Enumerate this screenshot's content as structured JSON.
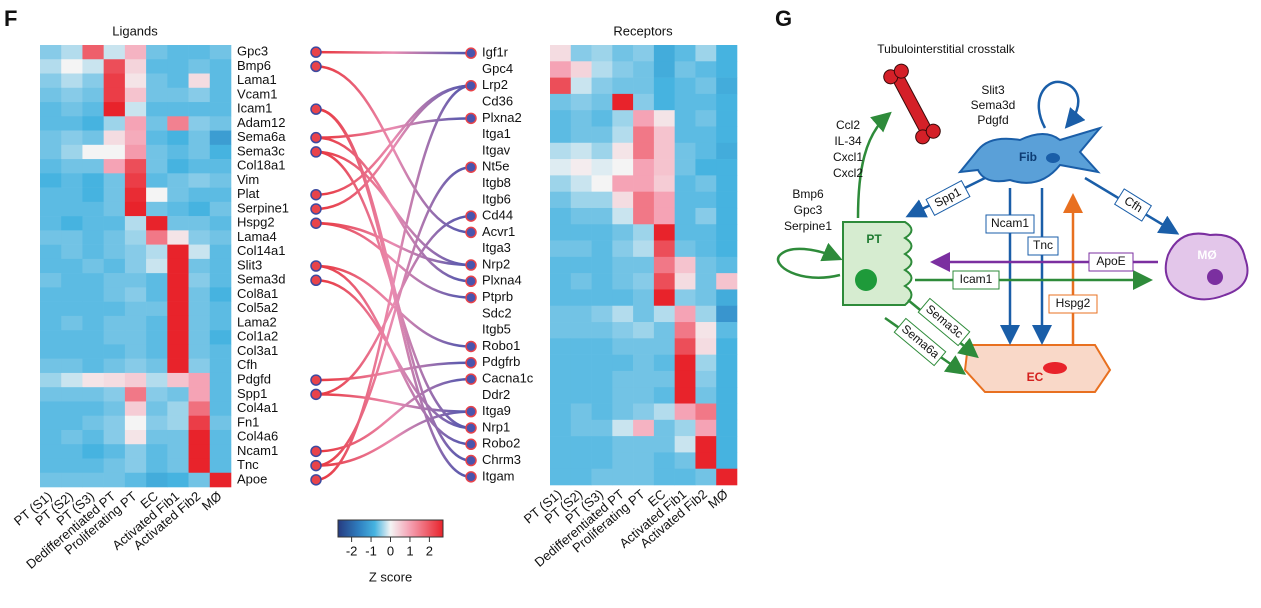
{
  "panel_f": {
    "label": "F",
    "cell_types": [
      "PT (S1)",
      "PT (S2)",
      "PT (S3)",
      "Dedifferentiated PT",
      "Proliferating PT",
      "EC",
      "Activated Fib1",
      "Activated Fib2",
      "MØ"
    ],
    "ligands": {
      "title": "Ligands",
      "genes": [
        "Gpc3",
        "Bmp6",
        "Lama1",
        "Vcam1",
        "Icam1",
        "Adam12",
        "Sema6a",
        "Sema3c",
        "Col18a1",
        "Vim",
        "Plat",
        "Serpine1",
        "Hspg2",
        "Lama4",
        "Col14a1",
        "Slit3",
        "Sema3d",
        "Col8a1",
        "Col5a2",
        "Lama2",
        "Col1a2",
        "Col3a1",
        "Cfh",
        "Pdgfd",
        "Spp1",
        "Col4a1",
        "Fn1",
        "Col4a6",
        "Ncam1",
        "Tnc",
        "Apoe"
      ],
      "values": [
        [
          -0.5,
          -0.3,
          1.8,
          -0.2,
          0.8,
          -0.6,
          -0.7,
          -0.7,
          -0.6
        ],
        [
          -0.3,
          0,
          -0.2,
          2,
          0.4,
          -0.7,
          -0.7,
          -0.6,
          -0.7
        ],
        [
          -0.5,
          -0.3,
          -0.5,
          2.2,
          0.2,
          -0.6,
          -0.7,
          0.3,
          -0.7
        ],
        [
          -0.6,
          -0.5,
          -0.6,
          2.2,
          0.6,
          -0.6,
          -0.6,
          -0.5,
          -0.7
        ],
        [
          -0.7,
          -0.6,
          -0.7,
          2.5,
          -0.2,
          -0.7,
          -0.7,
          -0.7,
          -0.7
        ],
        [
          -0.7,
          -0.7,
          -0.8,
          -0.4,
          1,
          -0.6,
          1.4,
          -0.5,
          -0.6
        ],
        [
          -0.6,
          -0.5,
          -0.6,
          0.3,
          0.9,
          -0.7,
          -0.8,
          -0.6,
          -1.1
        ],
        [
          -0.6,
          -0.4,
          0,
          0,
          1.1,
          -0.6,
          -0.7,
          -0.6,
          -0.8
        ],
        [
          -0.7,
          -0.6,
          -0.6,
          1,
          2,
          -0.6,
          -0.8,
          -0.7,
          -0.7
        ],
        [
          -0.8,
          -0.7,
          -0.8,
          -0.6,
          2.2,
          -0.7,
          -0.6,
          -0.5,
          -0.6
        ],
        [
          -0.7,
          -0.7,
          -0.8,
          -0.6,
          2.4,
          0,
          -0.6,
          -0.7,
          -0.7
        ],
        [
          -0.7,
          -0.7,
          -0.7,
          -0.6,
          2.5,
          -0.6,
          -0.7,
          -0.8,
          -0.6
        ],
        [
          -0.7,
          -0.8,
          -0.7,
          -0.7,
          -0.3,
          2.5,
          -0.6,
          -0.6,
          -0.7
        ],
        [
          -0.6,
          -0.6,
          -0.7,
          -0.6,
          -0.4,
          1.5,
          0.2,
          -0.5,
          -0.6
        ],
        [
          -0.7,
          -0.6,
          -0.7,
          -0.6,
          -0.5,
          -0.3,
          2.6,
          -0.2,
          -0.7
        ],
        [
          -0.7,
          -0.7,
          -0.6,
          -0.7,
          -0.5,
          -0.2,
          2.6,
          -0.6,
          -0.7
        ],
        [
          -0.6,
          -0.7,
          -0.7,
          -0.6,
          -0.6,
          -0.7,
          2.6,
          -0.5,
          -0.7
        ],
        [
          -0.7,
          -0.7,
          -0.7,
          -0.6,
          -0.5,
          -0.7,
          2.6,
          -0.6,
          -0.8
        ],
        [
          -0.7,
          -0.7,
          -0.7,
          -0.7,
          -0.6,
          -0.6,
          2.6,
          -0.6,
          -0.7
        ],
        [
          -0.7,
          -0.6,
          -0.7,
          -0.6,
          -0.6,
          -0.7,
          2.6,
          -0.6,
          -0.7
        ],
        [
          -0.7,
          -0.7,
          -0.7,
          -0.6,
          -0.6,
          -0.7,
          2.6,
          -0.6,
          -0.8
        ],
        [
          -0.7,
          -0.7,
          -0.7,
          -0.7,
          -0.6,
          -0.7,
          2.6,
          -0.6,
          -0.7
        ],
        [
          -0.6,
          -0.6,
          -0.7,
          -0.6,
          -0.5,
          -0.6,
          2.6,
          -0.5,
          -0.7
        ],
        [
          -0.4,
          -0.2,
          0.2,
          0.3,
          0.5,
          -0.3,
          0.6,
          1,
          -0.7
        ],
        [
          -0.6,
          -0.6,
          -0.6,
          -0.5,
          1.5,
          -0.5,
          -0.6,
          1,
          -0.7
        ],
        [
          -0.7,
          -0.7,
          -0.7,
          -0.6,
          0.5,
          -0.6,
          -0.4,
          1.6,
          -0.7
        ],
        [
          -0.7,
          -0.7,
          -0.6,
          -0.5,
          0,
          -0.5,
          -0.4,
          2.2,
          -0.6
        ],
        [
          -0.7,
          -0.6,
          -0.7,
          -0.5,
          0.2,
          -0.6,
          -0.6,
          2.5,
          -0.7
        ],
        [
          -0.7,
          -0.7,
          -0.8,
          -0.7,
          -0.5,
          -0.7,
          -0.6,
          2.6,
          -0.7
        ],
        [
          -0.7,
          -0.7,
          -0.7,
          -0.6,
          -0.5,
          -0.7,
          -0.6,
          2.6,
          -0.7
        ],
        [
          -0.6,
          -0.6,
          -0.6,
          -0.6,
          -0.7,
          -0.9,
          -0.8,
          -0.6,
          2.6
        ]
      ]
    },
    "receptors": {
      "title": "Receptors",
      "genes": [
        "Igf1r",
        "Gpc4",
        "Lrp2",
        "Cd36",
        "Plxna2",
        "Itga1",
        "Itgav",
        "Nt5e",
        "Itgb8",
        "Itgb6",
        "Cd44",
        "Acvr1",
        "Itga3",
        "Nrp2",
        "Plxna4",
        "Ptprb",
        "Sdc2",
        "Itgb5",
        "Robo1",
        "Pdgfrb",
        "Cacna1c",
        "Ddr2",
        "Itga9",
        "Nrp1",
        "Robo2",
        "Chrm3",
        "Itgam"
      ],
      "values": [
        [
          0.3,
          -0.5,
          -0.4,
          -0.6,
          -0.5,
          -0.9,
          -0.7,
          -0.4,
          -0.8
        ],
        [
          1,
          0.4,
          -0.3,
          -0.5,
          -0.6,
          -0.9,
          -0.6,
          -0.7,
          -0.8
        ],
        [
          2,
          -0.2,
          -0.5,
          -0.6,
          -0.6,
          -0.8,
          -0.7,
          -0.6,
          -0.9
        ],
        [
          -0.6,
          -0.5,
          -0.6,
          2.5,
          -0.5,
          -0.8,
          -0.7,
          -0.7,
          -0.8
        ],
        [
          -0.7,
          -0.6,
          -0.7,
          -0.4,
          1,
          0.2,
          -0.7,
          -0.6,
          -0.8
        ],
        [
          -0.7,
          -0.6,
          -0.6,
          -0.3,
          1.5,
          0.6,
          -0.7,
          -0.7,
          -0.8
        ],
        [
          -0.3,
          -0.2,
          -0.4,
          0.2,
          1.5,
          0.6,
          -0.6,
          -0.7,
          -0.9
        ],
        [
          -0.1,
          0.1,
          -0.1,
          0,
          1,
          0.6,
          -0.6,
          -0.8,
          -0.8
        ],
        [
          -0.4,
          -0.2,
          0,
          1,
          1,
          0.5,
          -0.7,
          -0.6,
          -0.8
        ],
        [
          -0.6,
          -0.4,
          -0.4,
          0.3,
          1.5,
          1,
          -0.7,
          -0.7,
          -0.8
        ],
        [
          -0.7,
          -0.6,
          -0.6,
          -0.2,
          1.5,
          1,
          -0.7,
          -0.5,
          -0.8
        ],
        [
          -0.7,
          -0.7,
          -0.7,
          -0.6,
          -0.4,
          2.5,
          -0.7,
          -0.7,
          -0.8
        ],
        [
          -0.6,
          -0.6,
          -0.7,
          -0.5,
          -0.3,
          2,
          -0.6,
          -0.7,
          -0.8
        ],
        [
          -0.7,
          -0.7,
          -0.7,
          -0.6,
          -0.6,
          1.5,
          0.6,
          -0.6,
          -0.7
        ],
        [
          -0.7,
          -0.6,
          -0.7,
          -0.6,
          -0.5,
          2,
          0.3,
          -0.6,
          0.6
        ],
        [
          -0.7,
          -0.7,
          -0.7,
          -0.7,
          -0.6,
          2.5,
          -0.5,
          -0.6,
          -0.9
        ],
        [
          -0.6,
          -0.6,
          -0.5,
          -0.3,
          -0.6,
          -0.3,
          1,
          -0.4,
          -1.2
        ],
        [
          -0.6,
          -0.6,
          -0.6,
          -0.5,
          -0.4,
          -0.6,
          1.5,
          0.2,
          -0.7
        ],
        [
          -0.7,
          -0.7,
          -0.7,
          -0.6,
          -0.6,
          -0.6,
          2,
          0.3,
          -0.8
        ],
        [
          -0.7,
          -0.7,
          -0.7,
          -0.7,
          -0.6,
          -0.7,
          2.5,
          -0.4,
          -0.8
        ],
        [
          -0.7,
          -0.7,
          -0.7,
          -0.6,
          -0.6,
          -0.6,
          2.5,
          -0.5,
          -0.8
        ],
        [
          -0.7,
          -0.7,
          -0.7,
          -0.6,
          -0.6,
          -0.7,
          2.5,
          -0.6,
          -0.8
        ],
        [
          -0.7,
          -0.6,
          -0.7,
          -0.6,
          -0.5,
          -0.3,
          1,
          1.5,
          -0.8
        ],
        [
          -0.7,
          -0.6,
          -0.6,
          -0.2,
          0.8,
          -0.6,
          -0.4,
          1,
          -0.8
        ],
        [
          -0.7,
          -0.7,
          -0.7,
          -0.6,
          -0.6,
          -0.6,
          -0.2,
          2.5,
          -0.8
        ],
        [
          -0.7,
          -0.7,
          -0.7,
          -0.6,
          -0.6,
          -0.7,
          -0.6,
          2.5,
          -0.8
        ],
        [
          -0.7,
          -0.7,
          -0.6,
          -0.6,
          -0.6,
          -0.7,
          -0.7,
          -0.6,
          2.5
        ]
      ]
    },
    "links": [
      [
        0,
        0
      ],
      [
        1,
        11
      ],
      [
        4,
        26
      ],
      [
        6,
        4
      ],
      [
        6,
        14
      ],
      [
        7,
        13
      ],
      [
        7,
        23
      ],
      [
        10,
        2
      ],
      [
        11,
        2
      ],
      [
        12,
        15
      ],
      [
        15,
        18
      ],
      [
        15,
        24
      ],
      [
        16,
        23
      ],
      [
        23,
        19
      ],
      [
        24,
        10
      ],
      [
        24,
        22
      ],
      [
        28,
        20
      ],
      [
        29,
        22
      ],
      [
        29,
        7
      ],
      [
        30,
        2
      ],
      [
        4,
        25
      ],
      [
        12,
        13
      ]
    ],
    "colorbar": {
      "lim": [
        -2.7,
        2.7
      ],
      "ticks": [
        -2,
        -1,
        0,
        1,
        2
      ],
      "label": "Z score"
    }
  },
  "panel_g": {
    "label": "G",
    "title": "Tubulointerstitial crosstalk",
    "fib_ligands": [
      "Slit3",
      "Sema3d",
      "Pdgfd"
    ],
    "pt_secreted": [
      "Ccl2",
      "IL-34",
      "Cxcl1",
      "Cxcl2"
    ],
    "pt_ligands": [
      "Bmp6",
      "Gpc3",
      "Serpine1"
    ],
    "cells": {
      "pt": "PT",
      "fib": "Fib",
      "ec": "EC",
      "mac": "MØ"
    },
    "edges": {
      "spp1": "Spp1",
      "ncam1": "Ncam1",
      "tnc": "Tnc",
      "cfh": "Cfh",
      "apoe": "ApoE",
      "icam1": "Icam1",
      "hspg2": "Hspg2",
      "sema3c": "Sema3c",
      "sema6a": "Sema6a"
    }
  }
}
